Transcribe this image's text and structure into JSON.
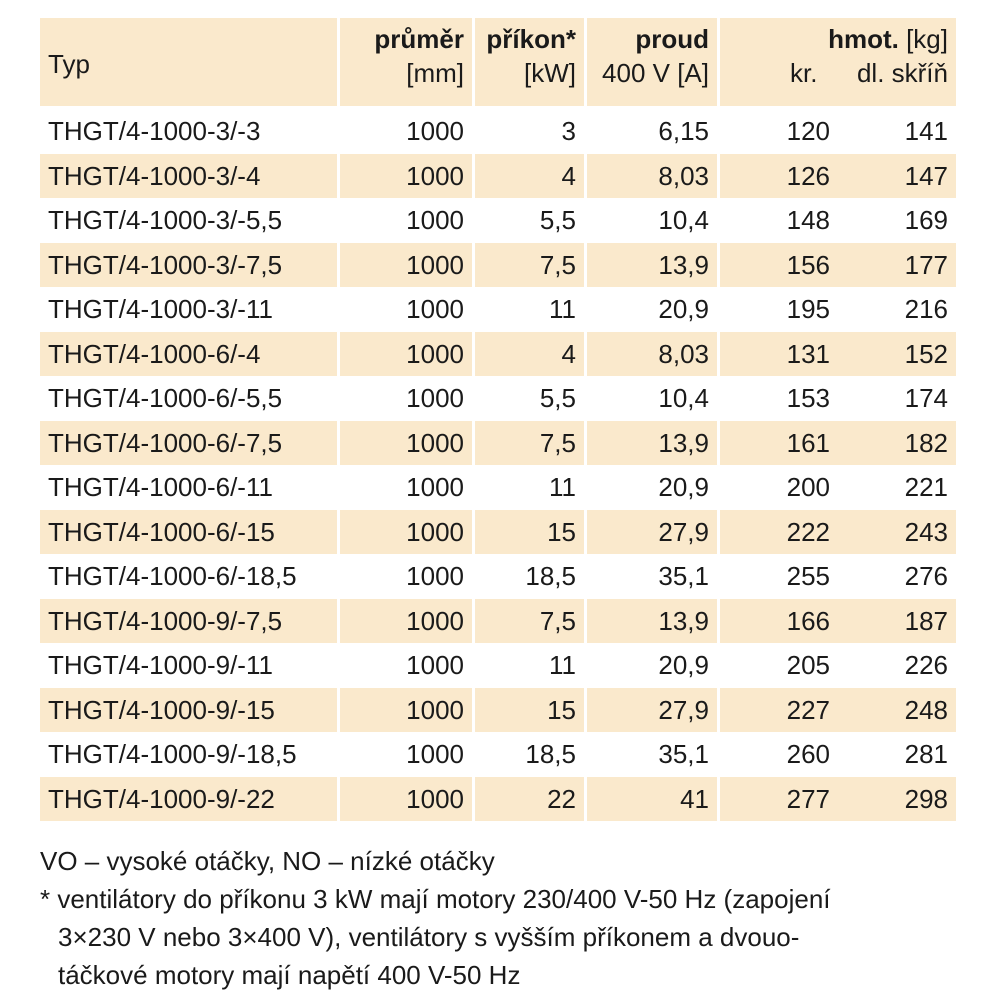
{
  "header": {
    "typ": "Typ",
    "prumer": {
      "main": "průměr",
      "unit": "[mm]"
    },
    "prikon": {
      "main": "příkon*",
      "unit": "[kW]"
    },
    "proud": {
      "main": "proud",
      "unit": "400 V [A]"
    },
    "hmot": {
      "main": "hmot.",
      "unit": "[kg]",
      "kr": "kr.",
      "dl": "dl. skříň"
    }
  },
  "rows": [
    {
      "typ": "THGT/4-1000-3/-3",
      "prumer": "1000",
      "prikon": "3",
      "proud": "6,15",
      "kr": "120",
      "dl": "141"
    },
    {
      "typ": "THGT/4-1000-3/-4",
      "prumer": "1000",
      "prikon": "4",
      "proud": "8,03",
      "kr": "126",
      "dl": "147"
    },
    {
      "typ": "THGT/4-1000-3/-5,5",
      "prumer": "1000",
      "prikon": "5,5",
      "proud": "10,4",
      "kr": "148",
      "dl": "169"
    },
    {
      "typ": "THGT/4-1000-3/-7,5",
      "prumer": "1000",
      "prikon": "7,5",
      "proud": "13,9",
      "kr": "156",
      "dl": "177"
    },
    {
      "typ": "THGT/4-1000-3/-11",
      "prumer": "1000",
      "prikon": "11",
      "proud": "20,9",
      "kr": "195",
      "dl": "216"
    },
    {
      "typ": "THGT/4-1000-6/-4",
      "prumer": "1000",
      "prikon": "4",
      "proud": "8,03",
      "kr": "131",
      "dl": "152"
    },
    {
      "typ": "THGT/4-1000-6/-5,5",
      "prumer": "1000",
      "prikon": "5,5",
      "proud": "10,4",
      "kr": "153",
      "dl": "174"
    },
    {
      "typ": "THGT/4-1000-6/-7,5",
      "prumer": "1000",
      "prikon": "7,5",
      "proud": "13,9",
      "kr": "161",
      "dl": "182"
    },
    {
      "typ": "THGT/4-1000-6/-11",
      "prumer": "1000",
      "prikon": "11",
      "proud": "20,9",
      "kr": "200",
      "dl": "221"
    },
    {
      "typ": "THGT/4-1000-6/-15",
      "prumer": "1000",
      "prikon": "15",
      "proud": "27,9",
      "kr": "222",
      "dl": "243"
    },
    {
      "typ": "THGT/4-1000-6/-18,5",
      "prumer": "1000",
      "prikon": "18,5",
      "proud": "35,1",
      "kr": "255",
      "dl": "276"
    },
    {
      "typ": "THGT/4-1000-9/-7,5",
      "prumer": "1000",
      "prikon": "7,5",
      "proud": "13,9",
      "kr": "166",
      "dl": "187"
    },
    {
      "typ": "THGT/4-1000-9/-11",
      "prumer": "1000",
      "prikon": "11",
      "proud": "20,9",
      "kr": "205",
      "dl": "226"
    },
    {
      "typ": "THGT/4-1000-9/-15",
      "prumer": "1000",
      "prikon": "15",
      "proud": "27,9",
      "kr": "227",
      "dl": "248"
    },
    {
      "typ": "THGT/4-1000-9/-18,5",
      "prumer": "1000",
      "prikon": "18,5",
      "proud": "35,1",
      "kr": "260",
      "dl": "281"
    },
    {
      "typ": "THGT/4-1000-9/-22",
      "prumer": "1000",
      "prikon": "22",
      "proud": "41",
      "kr": "277",
      "dl": "298"
    }
  ],
  "notes": {
    "line1": "VO – vysoké otáčky, NO – nízké otáčky",
    "line2": "* ventilátory do příkonu 3 kW mají motory 230/400 V-50 Hz (zapojení",
    "line3": "3×230 V nebo 3×400 V), ventilátory s vyšším příkonem a dvouo-",
    "line4": "táčkové motory mají napětí 400 V-50 Hz"
  },
  "colors": {
    "shade": "#fae9cc",
    "text": "#1a1a1a"
  }
}
